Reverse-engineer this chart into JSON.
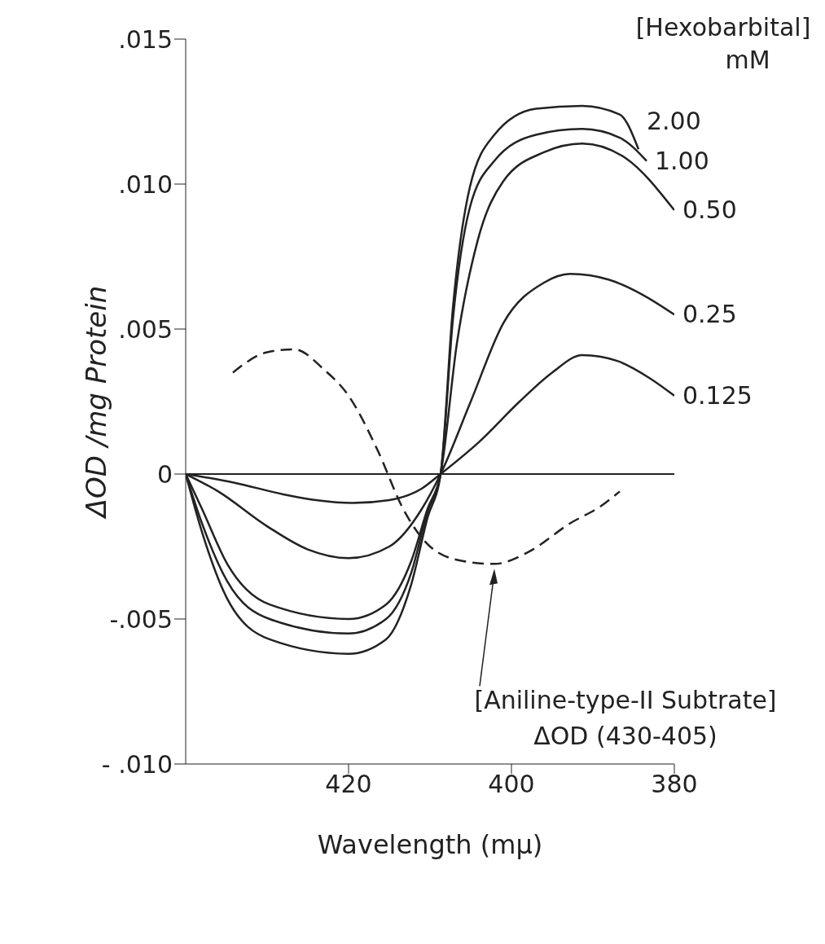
{
  "chart_data": {
    "type": "line",
    "xlabel": "Wavelength (mμ)",
    "ylabel": "ΔOD /mg Protein",
    "legend_title": "[Hexobarbital] mM",
    "xlim": [
      440,
      380
    ],
    "xticks": [
      420,
      400,
      380
    ],
    "ylim": [
      -0.01,
      0.015
    ],
    "yticks": [
      {
        "value": 0.015,
        "label": ".015"
      },
      {
        "value": 0.01,
        "label": ".010"
      },
      {
        "value": 0.005,
        "label": ".005"
      },
      {
        "value": 0,
        "label": "0"
      },
      {
        "value": -0.005,
        "label": "-.005"
      },
      {
        "value": -0.01,
        "label": "- .010"
      }
    ],
    "grid": false,
    "marker": "none",
    "ref_lines": [
      {
        "axis": "y",
        "value": 0,
        "color": "#222222"
      }
    ],
    "annotations": [
      "[Aniline-type-II Subtrate]\nΔOD (430-405)"
    ],
    "series": [
      {
        "name": "2.00",
        "color": "#222222",
        "line_style": "solid",
        "x": [
          440,
          438,
          434.9,
          429.7,
          420,
          415.4,
          412.3,
          410.3,
          408.7,
          407.2,
          405.1,
          402.1,
          397,
          391.3,
          386.7,
          384.4
        ],
        "values": [
          0,
          -0.002,
          -0.0043,
          -0.0057,
          -0.0062,
          -0.0057,
          -0.0038,
          -0.0015,
          0,
          0.0057,
          0.0099,
          0.0117,
          0.0126,
          0.0127,
          0.0124,
          0.0112
        ]
      },
      {
        "name": "1.00",
        "color": "#222222",
        "line_style": "solid",
        "x": [
          440,
          438,
          434.9,
          429.7,
          420,
          415.4,
          412.3,
          410.3,
          408.7,
          407.2,
          405.1,
          402.1,
          397,
          391.3,
          386.7,
          383.4
        ],
        "values": [
          0,
          -0.0017,
          -0.0037,
          -0.005,
          -0.0055,
          -0.005,
          -0.0034,
          -0.0013,
          0,
          0.0053,
          0.0092,
          0.0108,
          0.0117,
          0.0119,
          0.0116,
          0.0108
        ]
      },
      {
        "name": "0.50",
        "color": "#222222",
        "line_style": "solid",
        "x": [
          440,
          438,
          434.9,
          429.7,
          420,
          415.4,
          412.3,
          410.3,
          408.7,
          406.7,
          404.1,
          401,
          396,
          391.3,
          386,
          380
        ],
        "values": [
          0,
          -0.0012,
          -0.0031,
          -0.0045,
          -0.005,
          -0.0045,
          -0.003,
          -0.0012,
          0,
          0.0045,
          0.0081,
          0.0101,
          0.0111,
          0.0114,
          0.0109,
          0.0091
        ]
      },
      {
        "name": "0.25",
        "color": "#222222",
        "line_style": "solid",
        "x": [
          440,
          436,
          430,
          425,
          420,
          415,
          411,
          408.7,
          405,
          401,
          396,
          392.8,
          388,
          384,
          380
        ],
        "values": [
          0,
          -0.0006,
          -0.0018,
          -0.0026,
          -0.0029,
          -0.0025,
          -0.0012,
          0,
          0.0025,
          0.0052,
          0.0066,
          0.0069,
          0.0067,
          0.0062,
          0.0055
        ]
      },
      {
        "name": "0.125",
        "color": "#222222",
        "line_style": "solid",
        "x": [
          440,
          434,
          428,
          424,
          419.5,
          415,
          411,
          408.7,
          404,
          399,
          395,
          391.3,
          387,
          383,
          380
        ],
        "values": [
          0,
          -0.0003,
          -0.0007,
          -0.0009,
          -0.001,
          -0.0009,
          -0.0005,
          0,
          0.0011,
          0.0025,
          0.0035,
          0.0041,
          0.0039,
          0.0033,
          0.0027
        ]
      },
      {
        "color": "#222222",
        "line_style": "dashed",
        "x": [
          434.2,
          430,
          426.7,
          423,
          420,
          416.4,
          413.3,
          410,
          406,
          402.1,
          398,
          392.8,
          389,
          386.7
        ],
        "values": [
          0.0035,
          0.0042,
          0.0043,
          0.0036,
          0.0027,
          0.0008,
          -0.0012,
          -0.0025,
          -0.003,
          -0.0031,
          -0.0027,
          -0.0017,
          -0.0011,
          -0.0006
        ]
      }
    ]
  }
}
